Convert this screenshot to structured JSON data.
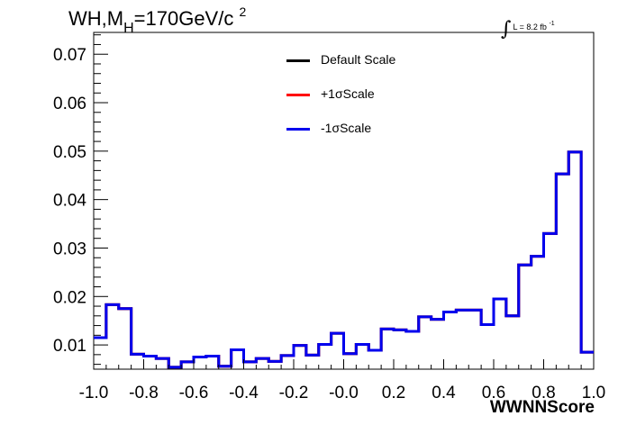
{
  "title": {
    "main": "WH,M",
    "sub": "H",
    "rest": "=170GeV/c",
    "sup": "2"
  },
  "lumi": {
    "text": "L = 8.2 fb",
    "sup": "-1"
  },
  "legend": [
    {
      "label": "Default Scale",
      "color": "#000000"
    },
    {
      "label": "+1σScale",
      "color": "#ff0000"
    },
    {
      "label": "-1σScale",
      "color": "#0000ee"
    }
  ],
  "chart_data": {
    "type": "line",
    "title": "WH,MH=170GeV/c2",
    "xlabel": "WWNNScore",
    "ylabel": "",
    "xlim": [
      -1.0,
      1.0
    ],
    "ylim": [
      0.005,
      0.0745
    ],
    "x_ticks": [
      "-1.0",
      "-0.8",
      "-0.6",
      "-0.4",
      "-0.2",
      "-0.0",
      "0.2",
      "0.4",
      "0.6",
      "0.8",
      "1.0"
    ],
    "y_ticks": [
      "0.01",
      "0.02",
      "0.03",
      "0.04",
      "0.05",
      "0.06",
      "0.07"
    ],
    "bin_edges": [
      -1.0,
      -0.95,
      -0.9,
      -0.85,
      -0.8,
      -0.75,
      -0.7,
      -0.65,
      -0.6,
      -0.55,
      -0.5,
      -0.45,
      -0.4,
      -0.35,
      -0.3,
      -0.25,
      -0.2,
      -0.15,
      -0.1,
      -0.05,
      0.0,
      0.05,
      0.1,
      0.15,
      0.2,
      0.25,
      0.3,
      0.35,
      0.4,
      0.45,
      0.5,
      0.55,
      0.6,
      0.65,
      0.7,
      0.75,
      0.8,
      0.85,
      0.9,
      0.95,
      1.0
    ],
    "series": [
      {
        "name": "Default Scale",
        "color": "#000000",
        "values": [
          0.0115,
          0.0183,
          0.0175,
          0.0081,
          0.0077,
          0.0072,
          0.0054,
          0.0065,
          0.0075,
          0.0077,
          0.0056,
          0.009,
          0.0065,
          0.0072,
          0.0066,
          0.0078,
          0.0099,
          0.0079,
          0.0101,
          0.0124,
          0.0082,
          0.0101,
          0.0089,
          0.0133,
          0.0131,
          0.0128,
          0.0158,
          0.0153,
          0.0168,
          0.0172,
          0.0172,
          0.0142,
          0.0195,
          0.016,
          0.0265,
          0.0283,
          0.033,
          0.0453,
          0.0498,
          0.0085
        ]
      },
      {
        "name": "+1σScale",
        "color": "#ff0000",
        "values": [
          0.0115,
          0.0183,
          0.0175,
          0.0081,
          0.0077,
          0.0072,
          0.0054,
          0.0065,
          0.0075,
          0.0077,
          0.0056,
          0.009,
          0.0065,
          0.0072,
          0.0066,
          0.0078,
          0.0099,
          0.0079,
          0.0101,
          0.0124,
          0.0082,
          0.0101,
          0.0089,
          0.0133,
          0.0131,
          0.0128,
          0.0158,
          0.0153,
          0.0168,
          0.0172,
          0.0172,
          0.0142,
          0.0195,
          0.016,
          0.0265,
          0.0283,
          0.033,
          0.0453,
          0.0498,
          0.0085
        ]
      },
      {
        "name": "-1σScale",
        "color": "#0000ee",
        "values": [
          0.0115,
          0.0183,
          0.0175,
          0.0081,
          0.0077,
          0.0072,
          0.0054,
          0.0065,
          0.0075,
          0.0077,
          0.0056,
          0.009,
          0.0065,
          0.0072,
          0.0066,
          0.0078,
          0.0099,
          0.0079,
          0.0101,
          0.0124,
          0.0082,
          0.0101,
          0.0089,
          0.0133,
          0.0131,
          0.0128,
          0.0158,
          0.0153,
          0.0168,
          0.0172,
          0.0172,
          0.0142,
          0.0195,
          0.016,
          0.0265,
          0.0283,
          0.033,
          0.0453,
          0.0498,
          0.0085
        ]
      }
    ],
    "grid": false,
    "legend_position": "top-center"
  }
}
